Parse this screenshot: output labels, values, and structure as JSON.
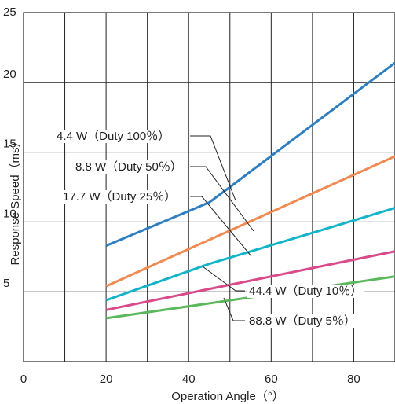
{
  "chart_data": {
    "type": "line",
    "xlabel": "Operation Angle（°）",
    "ylabel": "Response Speed（ms）",
    "xlim": [
      0,
      90
    ],
    "ylim": [
      0,
      25
    ],
    "x_ticks": [
      "0",
      "20",
      "40",
      "60",
      "80"
    ],
    "y_ticks": [
      "5",
      "10",
      "15",
      "20",
      "25"
    ],
    "grid": true,
    "series": [
      {
        "name": "4.4 W（Duty 100％）",
        "color": "#2e7fc1",
        "x": [
          20,
          45,
          50,
          90
        ],
        "y": [
          8.3,
          11.4,
          12.5,
          21.4
        ]
      },
      {
        "name": "8.8 W（Duty 50％）",
        "color": "#f08a50",
        "x": [
          20,
          90
        ],
        "y": [
          5.4,
          14.7
        ]
      },
      {
        "name": "17.7 W（Duty 25％）",
        "color": "#14b4c8",
        "x": [
          20,
          45,
          90
        ],
        "y": [
          4.4,
          7.0,
          11.0
        ]
      },
      {
        "name": "44.4 W（Duty 10％）",
        "color": "#d94a8a",
        "x": [
          20,
          90
        ],
        "y": [
          3.7,
          7.9
        ]
      },
      {
        "name": "88.8 W（Duty 5％）",
        "color": "#5cb85c",
        "x": [
          20,
          90
        ],
        "y": [
          3.1,
          6.1
        ]
      }
    ]
  }
}
